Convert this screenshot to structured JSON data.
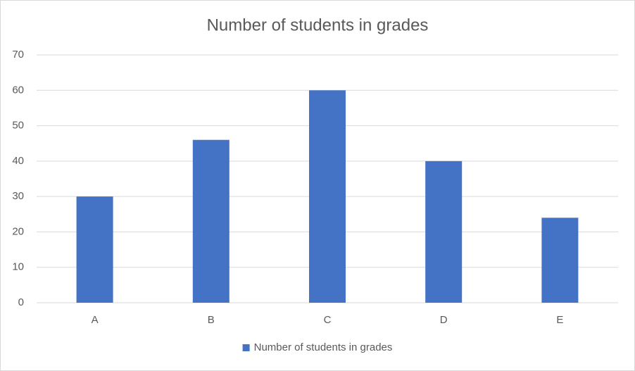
{
  "chart_data": {
    "type": "bar",
    "title": "Number of students in grades",
    "categories": [
      "A",
      "B",
      "C",
      "D",
      "E"
    ],
    "series": [
      {
        "name": "Number of students in grades",
        "color": "#4472c4",
        "values": [
          30,
          46,
          60,
          40,
          24
        ]
      }
    ],
    "ylim": [
      0,
      70
    ],
    "yticks": [
      0,
      10,
      20,
      30,
      40,
      50,
      60,
      70
    ],
    "grid": true,
    "legend": "bottom"
  }
}
